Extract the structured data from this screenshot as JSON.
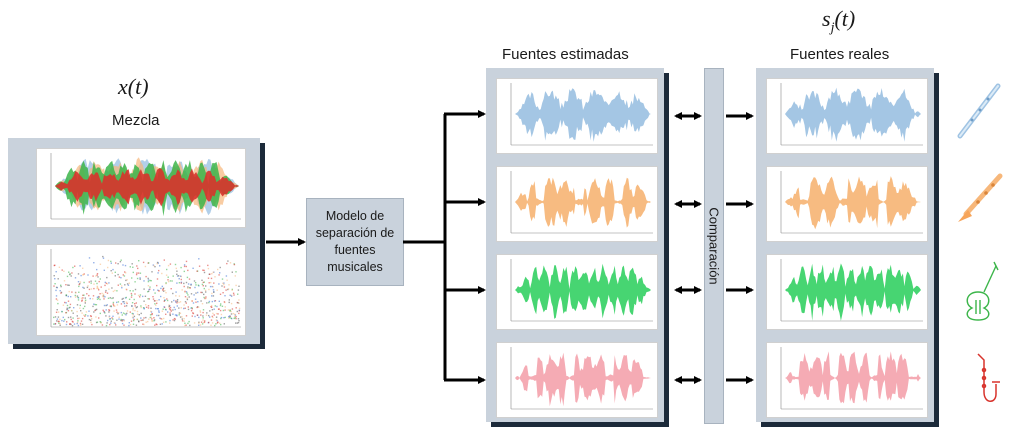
{
  "left": {
    "math": "x(t)",
    "title": "Mezcla"
  },
  "model": {
    "label": "Modelo de separación de fuentes musicales"
  },
  "estimated": {
    "title": "Fuentes estimadas"
  },
  "real": {
    "title": "Fuentes reales",
    "math": "s",
    "math_sub": "j",
    "math_arg": "(t)"
  },
  "compare": {
    "label": "Comparación"
  },
  "instruments": [
    "flute-icon",
    "clarinet-icon",
    "violin-icon",
    "saxophone-icon"
  ],
  "colors": {
    "blue": "#9fc3e3",
    "orange": "#f7b77a",
    "green": "#3dd36a",
    "pink": "#f4a7b0",
    "mix_red": "#d8332c",
    "mix_green": "#3cb54a",
    "panel": "#c9d2dc",
    "shadow": "#1c2a3a"
  }
}
